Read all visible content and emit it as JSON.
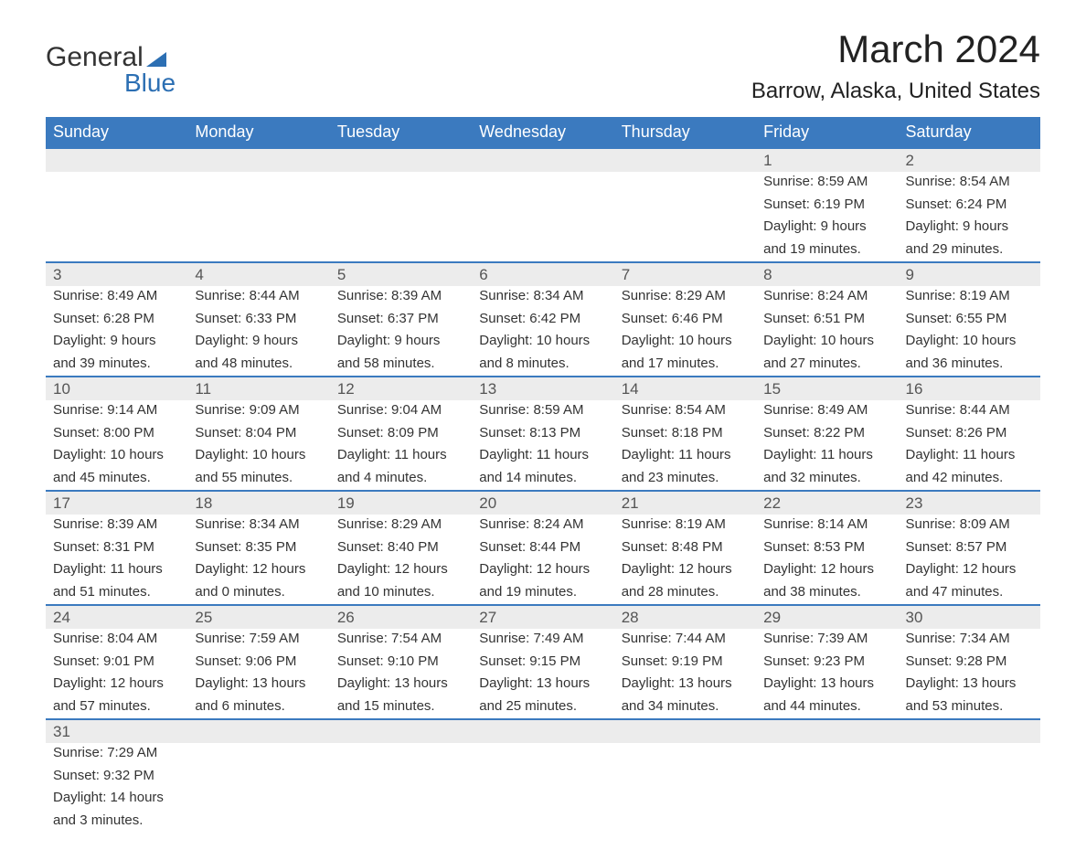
{
  "logo": {
    "text1": "General",
    "text2": "Blue",
    "accent_color": "#2c6fb3"
  },
  "title": "March 2024",
  "location": "Barrow, Alaska, United States",
  "colors": {
    "header_bg": "#3b7abf",
    "header_text": "#ffffff",
    "daynum_bg": "#ececec",
    "border": "#3b7abf",
    "body_text": "#333333"
  },
  "day_headers": [
    "Sunday",
    "Monday",
    "Tuesday",
    "Wednesday",
    "Thursday",
    "Friday",
    "Saturday"
  ],
  "weeks": [
    [
      null,
      null,
      null,
      null,
      null,
      {
        "n": "1",
        "sr": "Sunrise: 8:59 AM",
        "ss": "Sunset: 6:19 PM",
        "d1": "Daylight: 9 hours",
        "d2": "and 19 minutes."
      },
      {
        "n": "2",
        "sr": "Sunrise: 8:54 AM",
        "ss": "Sunset: 6:24 PM",
        "d1": "Daylight: 9 hours",
        "d2": "and 29 minutes."
      }
    ],
    [
      {
        "n": "3",
        "sr": "Sunrise: 8:49 AM",
        "ss": "Sunset: 6:28 PM",
        "d1": "Daylight: 9 hours",
        "d2": "and 39 minutes."
      },
      {
        "n": "4",
        "sr": "Sunrise: 8:44 AM",
        "ss": "Sunset: 6:33 PM",
        "d1": "Daylight: 9 hours",
        "d2": "and 48 minutes."
      },
      {
        "n": "5",
        "sr": "Sunrise: 8:39 AM",
        "ss": "Sunset: 6:37 PM",
        "d1": "Daylight: 9 hours",
        "d2": "and 58 minutes."
      },
      {
        "n": "6",
        "sr": "Sunrise: 8:34 AM",
        "ss": "Sunset: 6:42 PM",
        "d1": "Daylight: 10 hours",
        "d2": "and 8 minutes."
      },
      {
        "n": "7",
        "sr": "Sunrise: 8:29 AM",
        "ss": "Sunset: 6:46 PM",
        "d1": "Daylight: 10 hours",
        "d2": "and 17 minutes."
      },
      {
        "n": "8",
        "sr": "Sunrise: 8:24 AM",
        "ss": "Sunset: 6:51 PM",
        "d1": "Daylight: 10 hours",
        "d2": "and 27 minutes."
      },
      {
        "n": "9",
        "sr": "Sunrise: 8:19 AM",
        "ss": "Sunset: 6:55 PM",
        "d1": "Daylight: 10 hours",
        "d2": "and 36 minutes."
      }
    ],
    [
      {
        "n": "10",
        "sr": "Sunrise: 9:14 AM",
        "ss": "Sunset: 8:00 PM",
        "d1": "Daylight: 10 hours",
        "d2": "and 45 minutes."
      },
      {
        "n": "11",
        "sr": "Sunrise: 9:09 AM",
        "ss": "Sunset: 8:04 PM",
        "d1": "Daylight: 10 hours",
        "d2": "and 55 minutes."
      },
      {
        "n": "12",
        "sr": "Sunrise: 9:04 AM",
        "ss": "Sunset: 8:09 PM",
        "d1": "Daylight: 11 hours",
        "d2": "and 4 minutes."
      },
      {
        "n": "13",
        "sr": "Sunrise: 8:59 AM",
        "ss": "Sunset: 8:13 PM",
        "d1": "Daylight: 11 hours",
        "d2": "and 14 minutes."
      },
      {
        "n": "14",
        "sr": "Sunrise: 8:54 AM",
        "ss": "Sunset: 8:18 PM",
        "d1": "Daylight: 11 hours",
        "d2": "and 23 minutes."
      },
      {
        "n": "15",
        "sr": "Sunrise: 8:49 AM",
        "ss": "Sunset: 8:22 PM",
        "d1": "Daylight: 11 hours",
        "d2": "and 32 minutes."
      },
      {
        "n": "16",
        "sr": "Sunrise: 8:44 AM",
        "ss": "Sunset: 8:26 PM",
        "d1": "Daylight: 11 hours",
        "d2": "and 42 minutes."
      }
    ],
    [
      {
        "n": "17",
        "sr": "Sunrise: 8:39 AM",
        "ss": "Sunset: 8:31 PM",
        "d1": "Daylight: 11 hours",
        "d2": "and 51 minutes."
      },
      {
        "n": "18",
        "sr": "Sunrise: 8:34 AM",
        "ss": "Sunset: 8:35 PM",
        "d1": "Daylight: 12 hours",
        "d2": "and 0 minutes."
      },
      {
        "n": "19",
        "sr": "Sunrise: 8:29 AM",
        "ss": "Sunset: 8:40 PM",
        "d1": "Daylight: 12 hours",
        "d2": "and 10 minutes."
      },
      {
        "n": "20",
        "sr": "Sunrise: 8:24 AM",
        "ss": "Sunset: 8:44 PM",
        "d1": "Daylight: 12 hours",
        "d2": "and 19 minutes."
      },
      {
        "n": "21",
        "sr": "Sunrise: 8:19 AM",
        "ss": "Sunset: 8:48 PM",
        "d1": "Daylight: 12 hours",
        "d2": "and 28 minutes."
      },
      {
        "n": "22",
        "sr": "Sunrise: 8:14 AM",
        "ss": "Sunset: 8:53 PM",
        "d1": "Daylight: 12 hours",
        "d2": "and 38 minutes."
      },
      {
        "n": "23",
        "sr": "Sunrise: 8:09 AM",
        "ss": "Sunset: 8:57 PM",
        "d1": "Daylight: 12 hours",
        "d2": "and 47 minutes."
      }
    ],
    [
      {
        "n": "24",
        "sr": "Sunrise: 8:04 AM",
        "ss": "Sunset: 9:01 PM",
        "d1": "Daylight: 12 hours",
        "d2": "and 57 minutes."
      },
      {
        "n": "25",
        "sr": "Sunrise: 7:59 AM",
        "ss": "Sunset: 9:06 PM",
        "d1": "Daylight: 13 hours",
        "d2": "and 6 minutes."
      },
      {
        "n": "26",
        "sr": "Sunrise: 7:54 AM",
        "ss": "Sunset: 9:10 PM",
        "d1": "Daylight: 13 hours",
        "d2": "and 15 minutes."
      },
      {
        "n": "27",
        "sr": "Sunrise: 7:49 AM",
        "ss": "Sunset: 9:15 PM",
        "d1": "Daylight: 13 hours",
        "d2": "and 25 minutes."
      },
      {
        "n": "28",
        "sr": "Sunrise: 7:44 AM",
        "ss": "Sunset: 9:19 PM",
        "d1": "Daylight: 13 hours",
        "d2": "and 34 minutes."
      },
      {
        "n": "29",
        "sr": "Sunrise: 7:39 AM",
        "ss": "Sunset: 9:23 PM",
        "d1": "Daylight: 13 hours",
        "d2": "and 44 minutes."
      },
      {
        "n": "30",
        "sr": "Sunrise: 7:34 AM",
        "ss": "Sunset: 9:28 PM",
        "d1": "Daylight: 13 hours",
        "d2": "and 53 minutes."
      }
    ],
    [
      {
        "n": "31",
        "sr": "Sunrise: 7:29 AM",
        "ss": "Sunset: 9:32 PM",
        "d1": "Daylight: 14 hours",
        "d2": "and 3 minutes."
      },
      null,
      null,
      null,
      null,
      null,
      null
    ]
  ]
}
